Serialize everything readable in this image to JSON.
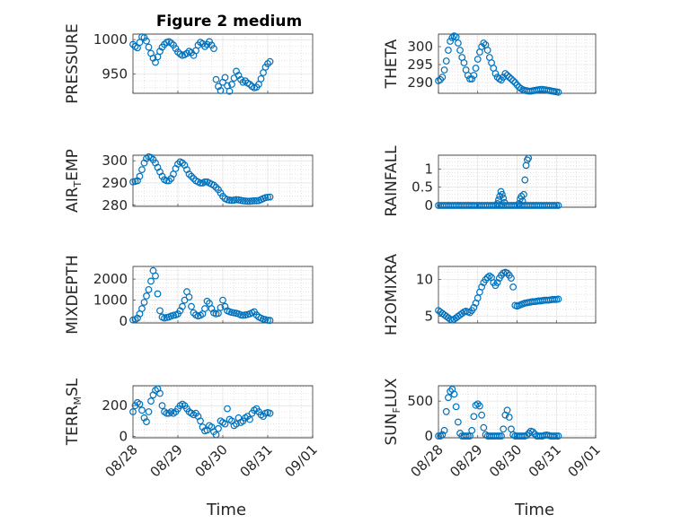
{
  "figure": {
    "title": "Figure 2 medium",
    "marker_color": "#0072BD"
  },
  "chart_data": [
    {
      "type": "scatter",
      "ylabel": "PRESSURE",
      "ylabel_parts": [
        {
          "t": "PRESSURE"
        }
      ],
      "ylim": [
        922,
        1008
      ],
      "yticks": [
        950,
        1000
      ],
      "xlim": [
        0,
        4
      ],
      "xticks": [
        0,
        1,
        2,
        3,
        4
      ],
      "xticklabels": [],
      "x": [
        0.0,
        0.05,
        0.1,
        0.15,
        0.2,
        0.25,
        0.3,
        0.35,
        0.4,
        0.45,
        0.5,
        0.55,
        0.6,
        0.65,
        0.7,
        0.75,
        0.8,
        0.85,
        0.9,
        0.95,
        1.0,
        1.05,
        1.1,
        1.15,
        1.2,
        1.25,
        1.3,
        1.35,
        1.4,
        1.45,
        1.5,
        1.55,
        1.6,
        1.65,
        1.7,
        1.75,
        1.8,
        1.85,
        1.9,
        1.95,
        2.0,
        2.05,
        2.1,
        2.15,
        2.2,
        2.25,
        2.3,
        2.35,
        2.4,
        2.45,
        2.5,
        2.55,
        2.6,
        2.65,
        2.7,
        2.75,
        2.8,
        2.85,
        2.9,
        2.95,
        3.0,
        3.05
      ],
      "y": [
        993,
        990,
        988,
        996,
        1004,
        1003,
        998,
        989,
        980,
        973,
        967,
        975,
        983,
        989,
        993,
        996,
        997,
        995,
        992,
        987,
        982,
        979,
        977,
        978,
        980,
        983,
        981,
        977,
        984,
        992,
        996,
        994,
        990,
        993,
        997,
        992,
        987,
        942,
        932,
        926,
        938,
        945,
        933,
        925,
        935,
        944,
        954,
        948,
        942,
        938,
        940,
        937,
        935,
        932,
        930,
        931,
        935,
        943,
        952,
        960,
        965,
        968
      ]
    },
    {
      "type": "scatter",
      "ylabel": "THETA",
      "ylabel_parts": [
        {
          "t": "THETA"
        }
      ],
      "ylim": [
        287,
        303.5
      ],
      "yticks": [
        290,
        295,
        300
      ],
      "xlim": [
        0,
        4
      ],
      "xticks": [
        0,
        1,
        2,
        3,
        4
      ],
      "xticklabels": [],
      "x": [
        0.0,
        0.05,
        0.1,
        0.15,
        0.2,
        0.25,
        0.3,
        0.35,
        0.4,
        0.45,
        0.5,
        0.55,
        0.6,
        0.65,
        0.7,
        0.75,
        0.8,
        0.85,
        0.9,
        0.95,
        1.0,
        1.05,
        1.1,
        1.15,
        1.2,
        1.25,
        1.3,
        1.35,
        1.4,
        1.45,
        1.5,
        1.55,
        1.6,
        1.65,
        1.7,
        1.75,
        1.8,
        1.85,
        1.9,
        1.95,
        2.0,
        2.05,
        2.1,
        2.15,
        2.2,
        2.25,
        2.3,
        2.35,
        2.4,
        2.45,
        2.5,
        2.55,
        2.6,
        2.65,
        2.7,
        2.75,
        2.8,
        2.85,
        2.9,
        2.95,
        3.0,
        3.05
      ],
      "y": [
        290.5,
        290.8,
        291.5,
        293.5,
        296,
        299,
        301.5,
        302.5,
        303,
        302.7,
        301,
        299,
        297,
        295.5,
        293.5,
        292,
        291,
        291,
        292,
        294,
        296.5,
        298.5,
        300,
        301,
        300.5,
        299,
        297,
        295.5,
        294,
        292.5,
        291.5,
        291,
        290.7,
        291.5,
        292.5,
        292,
        291.5,
        291,
        290.5,
        290,
        289.3,
        288.7,
        288.3,
        288,
        287.8,
        287.7,
        287.6,
        287.6,
        287.7,
        287.8,
        287.9,
        288,
        288.1,
        288.1,
        288,
        287.9,
        287.8,
        287.7,
        287.6,
        287.5,
        287.4,
        287.3
      ]
    },
    {
      "type": "scatter",
      "ylabel": "AIR_TEMP",
      "ylabel_parts": [
        {
          "t": "AIR"
        },
        {
          "t": "T",
          "sub": true
        },
        {
          "t": "EMP"
        }
      ],
      "ylim": [
        279.5,
        302.5
      ],
      "yticks": [
        280,
        290,
        300
      ],
      "xlim": [
        0,
        4
      ],
      "xticks": [
        0,
        1,
        2,
        3,
        4
      ],
      "xticklabels": [],
      "x": [
        0.0,
        0.05,
        0.1,
        0.15,
        0.2,
        0.25,
        0.3,
        0.35,
        0.4,
        0.45,
        0.5,
        0.55,
        0.6,
        0.65,
        0.7,
        0.75,
        0.8,
        0.85,
        0.9,
        0.95,
        1.0,
        1.05,
        1.1,
        1.15,
        1.2,
        1.25,
        1.3,
        1.35,
        1.4,
        1.45,
        1.5,
        1.55,
        1.6,
        1.65,
        1.7,
        1.75,
        1.8,
        1.85,
        1.9,
        1.95,
        2.0,
        2.05,
        2.1,
        2.15,
        2.2,
        2.25,
        2.3,
        2.35,
        2.4,
        2.45,
        2.5,
        2.55,
        2.6,
        2.65,
        2.7,
        2.75,
        2.8,
        2.85,
        2.9,
        2.95,
        3.0,
        3.05
      ],
      "y": [
        290.5,
        290.7,
        291,
        293,
        296,
        299,
        301,
        301.8,
        301.5,
        300.5,
        299,
        297,
        295,
        293,
        291.5,
        291,
        291,
        292,
        294,
        296.5,
        298.5,
        299.5,
        299,
        298,
        296,
        294,
        293,
        292,
        291,
        290.5,
        290,
        290,
        290.5,
        290.5,
        290,
        289.5,
        289,
        288,
        287,
        285.5,
        284,
        283,
        282.5,
        282.3,
        282.2,
        282.3,
        282.5,
        282.4,
        282.2,
        282,
        281.9,
        281.8,
        281.8,
        281.9,
        282,
        282,
        282.1,
        282.5,
        283,
        283.4,
        283.6,
        283.7
      ]
    },
    {
      "type": "scatter",
      "ylabel": "RAINFALL",
      "ylabel_parts": [
        {
          "t": "RAINFALL"
        }
      ],
      "ylim": [
        -0.05,
        1.38
      ],
      "yticks": [
        0,
        0.5,
        1
      ],
      "xlim": [
        0,
        4
      ],
      "xticks": [
        0,
        1,
        2,
        3,
        4
      ],
      "xticklabels": [],
      "x": [
        0.0,
        0.05,
        0.1,
        0.15,
        0.2,
        0.25,
        0.3,
        0.35,
        0.4,
        0.45,
        0.5,
        0.55,
        0.6,
        0.65,
        0.7,
        0.75,
        0.8,
        0.85,
        0.9,
        0.95,
        1.0,
        1.05,
        1.1,
        1.15,
        1.2,
        1.25,
        1.3,
        1.35,
        1.4,
        1.45,
        1.5,
        1.55,
        1.6,
        1.65,
        1.7,
        1.75,
        1.8,
        1.85,
        1.9,
        1.95,
        2.0,
        2.05,
        2.1,
        2.15,
        2.2,
        2.25,
        2.3,
        2.35,
        2.4,
        2.45,
        2.5,
        2.55,
        2.6,
        2.65,
        2.7,
        2.75,
        2.8,
        2.85,
        2.9,
        2.95,
        3.0,
        3.05,
        1.5,
        1.53,
        1.56,
        1.59,
        1.62,
        1.65,
        1.68,
        2.05,
        2.08,
        2.11,
        2.14,
        2.17,
        2.2,
        2.23,
        2.26,
        2.29
      ],
      "y": [
        0,
        0,
        0,
        0,
        0,
        0,
        0,
        0,
        0,
        0,
        0,
        0,
        0,
        0,
        0,
        0,
        0,
        0,
        0,
        0,
        0,
        0,
        0,
        0,
        0,
        0,
        0,
        0,
        0,
        0,
        0,
        0,
        0,
        0,
        0,
        0,
        0,
        0,
        0,
        0,
        0,
        0,
        0,
        0,
        0,
        0,
        0,
        0,
        0,
        0,
        0,
        0,
        0,
        0,
        0,
        0,
        0,
        0,
        0,
        0,
        0,
        0,
        0.05,
        0.15,
        0.25,
        0.38,
        0.3,
        0.2,
        0.08,
        0.05,
        0.18,
        0.25,
        0.12,
        0.3,
        0.7,
        1.1,
        1.25,
        1.3
      ]
    },
    {
      "type": "scatter",
      "ylabel": "MIXDEPTH",
      "ylabel_parts": [
        {
          "t": "MIXDEPTH"
        }
      ],
      "ylim": [
        -80,
        2600
      ],
      "yticks": [
        0,
        1000,
        2000
      ],
      "xlim": [
        0,
        4
      ],
      "xticks": [
        0,
        1,
        2,
        3,
        4
      ],
      "xticklabels": [],
      "x": [
        0.0,
        0.05,
        0.1,
        0.15,
        0.2,
        0.25,
        0.3,
        0.35,
        0.4,
        0.45,
        0.5,
        0.55,
        0.6,
        0.65,
        0.7,
        0.75,
        0.8,
        0.85,
        0.9,
        0.95,
        1.0,
        1.05,
        1.1,
        1.15,
        1.2,
        1.25,
        1.3,
        1.35,
        1.4,
        1.45,
        1.5,
        1.55,
        1.6,
        1.65,
        1.7,
        1.75,
        1.8,
        1.85,
        1.9,
        1.95,
        2.0,
        2.05,
        2.1,
        2.15,
        2.2,
        2.25,
        2.3,
        2.35,
        2.4,
        2.45,
        2.5,
        2.55,
        2.6,
        2.65,
        2.7,
        2.75,
        2.8,
        2.85,
        2.9,
        2.95,
        3.0,
        3.05
      ],
      "y": [
        60,
        80,
        150,
        350,
        600,
        900,
        1200,
        1500,
        1900,
        2400,
        2150,
        1300,
        500,
        200,
        150,
        180,
        200,
        250,
        280,
        300,
        350,
        500,
        700,
        1000,
        1400,
        1150,
        700,
        400,
        300,
        250,
        280,
        350,
        600,
        950,
        850,
        600,
        400,
        350,
        380,
        650,
        1000,
        700,
        500,
        450,
        420,
        400,
        380,
        350,
        300,
        280,
        300,
        320,
        350,
        400,
        450,
        300,
        200,
        150,
        100,
        80,
        50,
        40
      ]
    },
    {
      "type": "scatter",
      "ylabel": "H2OMIXRA",
      "ylabel_parts": [
        {
          "t": "H2OMIXRA"
        }
      ],
      "ylim": [
        4.1,
        11.8
      ],
      "yticks": [
        5,
        10
      ],
      "xlim": [
        0,
        4
      ],
      "xticks": [
        0,
        1,
        2,
        3,
        4
      ],
      "xticklabels": [],
      "x": [
        0.0,
        0.05,
        0.1,
        0.15,
        0.2,
        0.25,
        0.3,
        0.35,
        0.4,
        0.45,
        0.5,
        0.55,
        0.6,
        0.65,
        0.7,
        0.75,
        0.8,
        0.85,
        0.9,
        0.95,
        1.0,
        1.05,
        1.1,
        1.15,
        1.2,
        1.25,
        1.3,
        1.35,
        1.4,
        1.45,
        1.5,
        1.55,
        1.6,
        1.65,
        1.7,
        1.75,
        1.8,
        1.85,
        1.9,
        1.95,
        2.0,
        2.05,
        2.1,
        2.15,
        2.2,
        2.25,
        2.3,
        2.35,
        2.4,
        2.45,
        2.5,
        2.55,
        2.6,
        2.65,
        2.7,
        2.75,
        2.8,
        2.85,
        2.9,
        2.95,
        3.0,
        3.05
      ],
      "y": [
        5.8,
        5.6,
        5.4,
        5.2,
        5.0,
        4.8,
        4.6,
        4.5,
        4.6,
        4.8,
        5.0,
        5.2,
        5.4,
        5.6,
        5.7,
        5.6,
        5.5,
        5.8,
        6.2,
        6.8,
        7.5,
        8.3,
        9.0,
        9.6,
        10.0,
        10.3,
        10.5,
        10.3,
        9.6,
        9.2,
        9.6,
        10.2,
        10.6,
        10.9,
        11.0,
        10.9,
        10.6,
        10.2,
        9.0,
        6.5,
        6.4,
        6.5,
        6.6,
        6.7,
        6.8,
        6.85,
        6.9,
        6.95,
        7.0,
        7.0,
        7.05,
        7.1,
        7.1,
        7.15,
        7.2,
        7.2,
        7.2,
        7.25,
        7.3,
        7.3,
        7.3,
        7.35
      ]
    },
    {
      "type": "scatter",
      "ylabel": "TERR_MSL",
      "ylabel_parts": [
        {
          "t": "TERR"
        },
        {
          "t": "M",
          "sub": true
        },
        {
          "t": "SL"
        }
      ],
      "ylim": [
        -10,
        330
      ],
      "yticks": [
        0,
        200
      ],
      "xlim": [
        0,
        4
      ],
      "xticks": [
        0,
        1,
        2,
        3,
        4
      ],
      "xticklabels": [
        "08/28",
        "08/29",
        "08/30",
        "08/31",
        "09/01"
      ],
      "x": [
        0.0,
        0.05,
        0.1,
        0.15,
        0.2,
        0.25,
        0.3,
        0.35,
        0.4,
        0.45,
        0.5,
        0.55,
        0.6,
        0.65,
        0.7,
        0.75,
        0.8,
        0.85,
        0.9,
        0.95,
        1.0,
        1.05,
        1.1,
        1.15,
        1.2,
        1.25,
        1.3,
        1.35,
        1.4,
        1.45,
        1.5,
        1.55,
        1.6,
        1.65,
        1.7,
        1.75,
        1.8,
        1.85,
        1.9,
        1.95,
        2.0,
        2.05,
        2.1,
        2.15,
        2.2,
        2.25,
        2.3,
        2.35,
        2.4,
        2.45,
        2.5,
        2.55,
        2.6,
        2.65,
        2.7,
        2.75,
        2.8,
        2.85,
        2.9,
        2.95,
        3.0,
        3.05
      ],
      "y": [
        160,
        200,
        220,
        210,
        170,
        120,
        95,
        160,
        230,
        270,
        300,
        310,
        280,
        200,
        160,
        150,
        150,
        160,
        150,
        160,
        180,
        200,
        210,
        200,
        180,
        160,
        150,
        140,
        150,
        130,
        100,
        60,
        35,
        40,
        70,
        60,
        30,
        10,
        50,
        100,
        90,
        80,
        180,
        110,
        100,
        70,
        80,
        120,
        90,
        100,
        120,
        130,
        110,
        150,
        170,
        180,
        160,
        140,
        130,
        150,
        155,
        150
      ]
    },
    {
      "type": "scatter",
      "ylabel": "SUN_FLUX",
      "ylabel_parts": [
        {
          "t": "SUN"
        },
        {
          "t": "F",
          "sub": true
        },
        {
          "t": "LUX"
        }
      ],
      "ylim": [
        -25,
        720
      ],
      "yticks": [
        0,
        500
      ],
      "xlim": [
        0,
        4
      ],
      "xticks": [
        0,
        1,
        2,
        3,
        4
      ],
      "xticklabels": [
        "08/28",
        "08/29",
        "08/30",
        "08/31",
        "09/01"
      ],
      "x": [
        0.0,
        0.05,
        0.1,
        0.15,
        0.2,
        0.25,
        0.3,
        0.35,
        0.4,
        0.45,
        0.5,
        0.55,
        0.6,
        0.65,
        0.7,
        0.75,
        0.8,
        0.85,
        0.9,
        0.95,
        1.0,
        1.05,
        1.1,
        1.15,
        1.2,
        1.25,
        1.3,
        1.35,
        1.4,
        1.45,
        1.5,
        1.55,
        1.6,
        1.65,
        1.7,
        1.75,
        1.8,
        1.85,
        1.9,
        1.95,
        2.0,
        2.05,
        2.1,
        2.15,
        2.2,
        2.25,
        2.3,
        2.35,
        2.4,
        2.45,
        2.5,
        2.55,
        2.6,
        2.65,
        2.7,
        2.75,
        2.8,
        2.85,
        2.9,
        2.95,
        3.0,
        3.05
      ],
      "y": [
        0,
        0,
        20,
        80,
        350,
        550,
        640,
        670,
        600,
        420,
        200,
        40,
        0,
        0,
        0,
        0,
        0,
        80,
        280,
        440,
        460,
        430,
        300,
        120,
        20,
        0,
        0,
        0,
        0,
        0,
        0,
        0,
        0,
        100,
        300,
        370,
        270,
        100,
        20,
        0,
        0,
        0,
        0,
        0,
        0,
        10,
        40,
        70,
        60,
        30,
        0,
        0,
        0,
        0,
        10,
        15,
        10,
        0,
        0,
        0,
        0,
        0
      ]
    }
  ],
  "x_axis_label": "Time"
}
